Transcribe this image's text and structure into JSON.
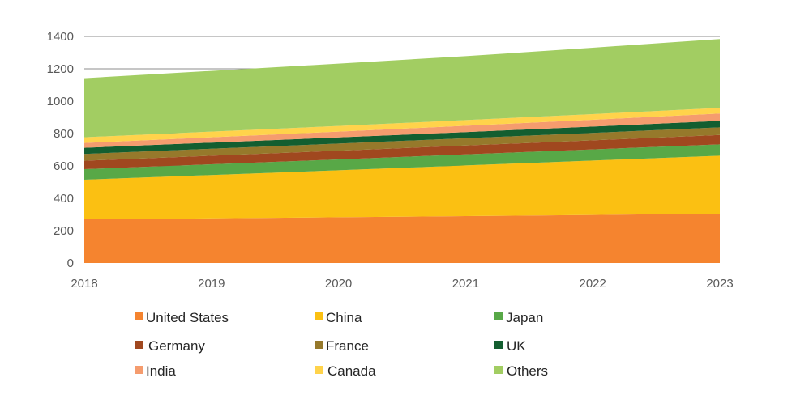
{
  "chart_data": {
    "type": "area",
    "stacked": true,
    "title": "",
    "xlabel": "",
    "ylabel": "",
    "x": [
      "2018",
      "2019",
      "2020",
      "2021",
      "2022",
      "2023"
    ],
    "ylim": [
      0,
      1400
    ],
    "yticks": [
      "0",
      "200",
      "400",
      "600",
      "800",
      "1000",
      "1200",
      "1400"
    ],
    "grid": "horizontal",
    "legend_position": "bottom",
    "series": [
      {
        "name": "United States",
        "color": "#F5842F",
        "values": [
          270,
          276,
          283,
          290,
          297,
          305
        ]
      },
      {
        "name": "China",
        "color": "#FBC012",
        "values": [
          245,
          268,
          290,
          313,
          336,
          358
        ]
      },
      {
        "name": "Japan",
        "color": "#58A847",
        "values": [
          65,
          66,
          67,
          68,
          69,
          70
        ]
      },
      {
        "name": "Germany",
        "color": "#A0481F",
        "values": [
          52,
          53,
          54,
          55,
          56,
          58
        ]
      },
      {
        "name": "France",
        "color": "#96792B",
        "values": [
          42,
          43,
          44,
          45,
          46,
          47
        ]
      },
      {
        "name": "UK",
        "color": "#135E30",
        "values": [
          38,
          38,
          38,
          38,
          39,
          40
        ]
      },
      {
        "name": "India",
        "color": "#F59C6E",
        "values": [
          30,
          33,
          36,
          39,
          42,
          46
        ]
      },
      {
        "name": "Canada",
        "color": "#FFD34B",
        "values": [
          35,
          35,
          35,
          35,
          35,
          35
        ]
      },
      {
        "name": "Others",
        "color": "#A2CD62",
        "values": [
          365,
          375,
          385,
          395,
          410,
          425
        ]
      }
    ]
  }
}
